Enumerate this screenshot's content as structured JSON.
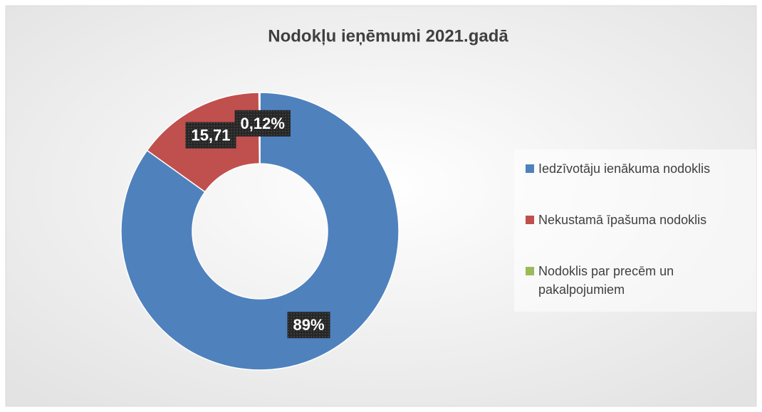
{
  "chart_data": {
    "type": "donut",
    "title": "Nodokļu ieņēmumi 2021.gadā",
    "categories": [
      "Iedzīvotāju ienākuma nodoklis",
      "Nekustamā īpašuma nodoklis",
      "Nodoklis par precēm un pakalpojumiem"
    ],
    "values": [
      89,
      15.71,
      0.12
    ],
    "value_labels": [
      "89%",
      "15,71",
      "0,12%"
    ],
    "colors": [
      "#4f81bd",
      "#c0504d",
      "#9bbb59"
    ],
    "legend": "right"
  }
}
